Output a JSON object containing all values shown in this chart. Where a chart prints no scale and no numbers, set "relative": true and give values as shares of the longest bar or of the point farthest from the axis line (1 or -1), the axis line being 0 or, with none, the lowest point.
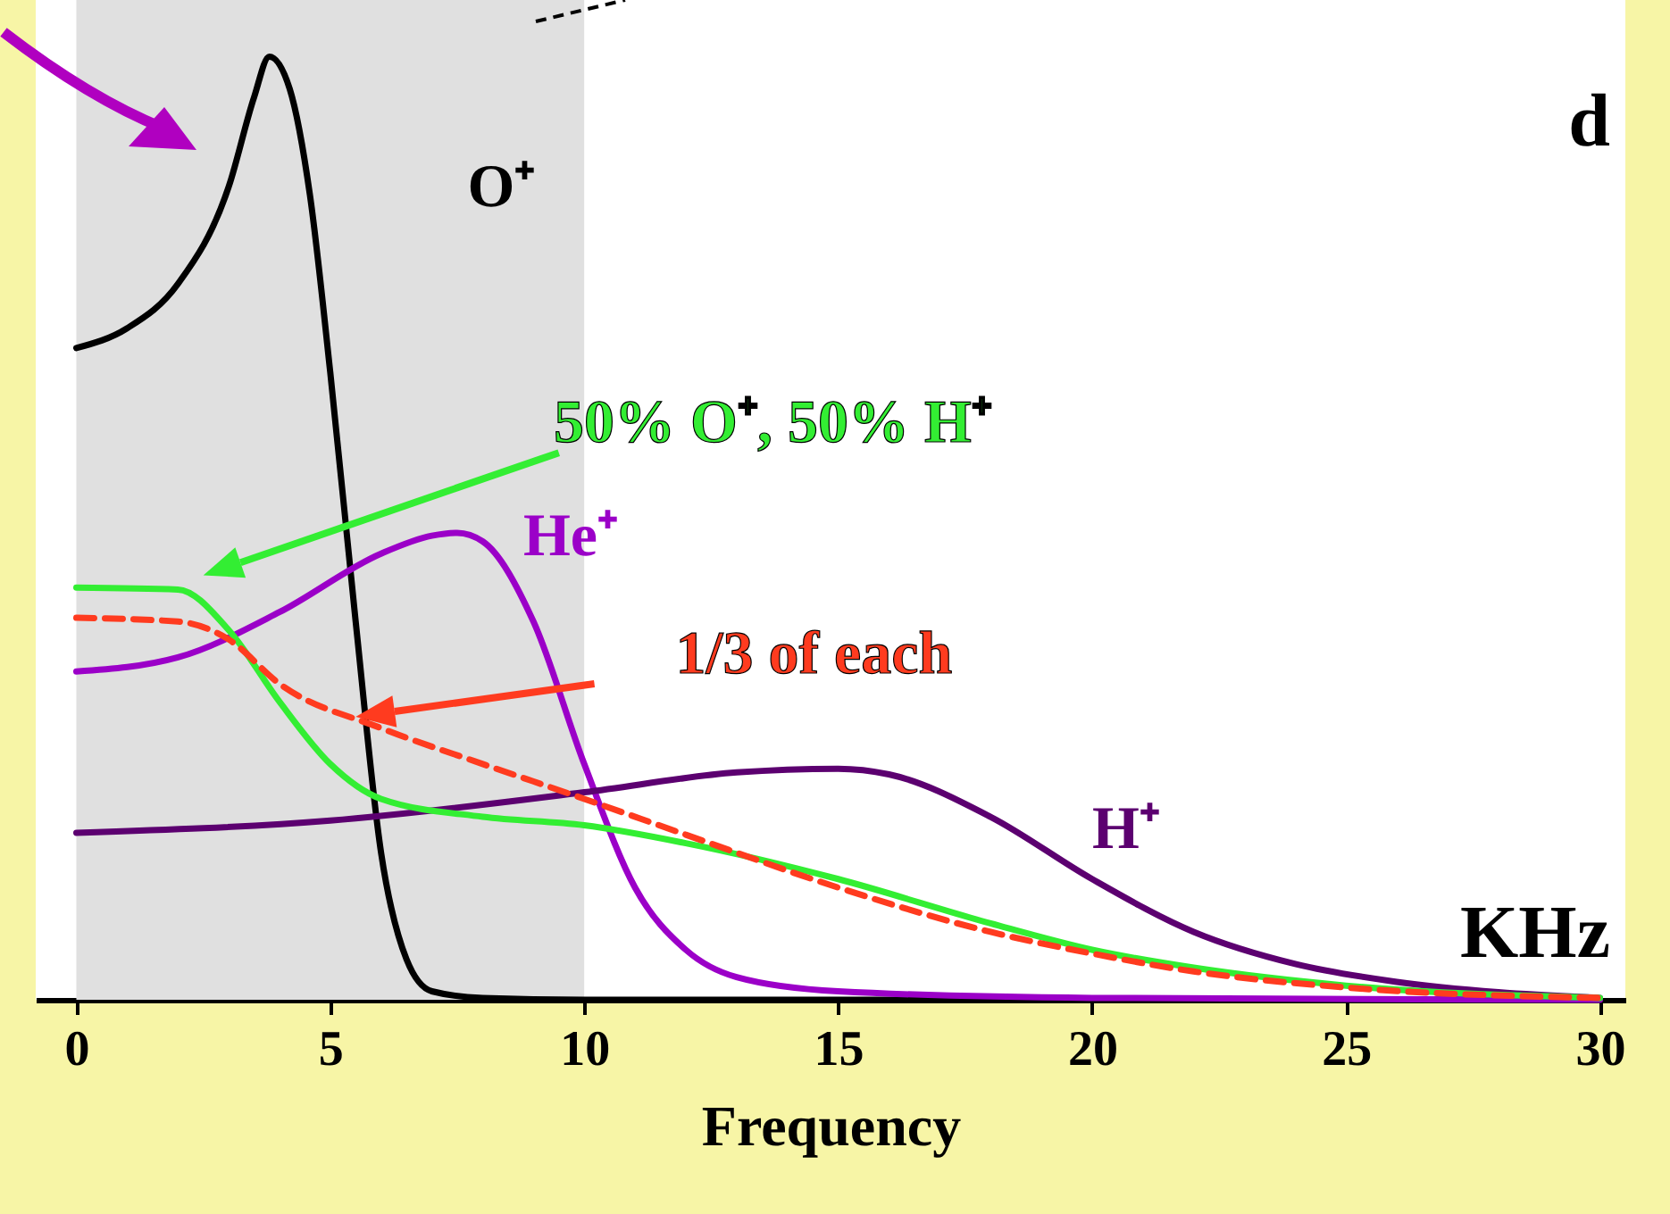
{
  "chart_data": {
    "type": "line",
    "relative": true,
    "xlabel": "Frequency",
    "xlim": [
      -0.8,
      30.5
    ],
    "xticks": [
      0,
      5,
      10,
      15,
      20,
      25,
      30
    ],
    "grid": false,
    "legend": false,
    "bands": [
      {
        "axis": "x",
        "from": 0,
        "to": 10,
        "color": "#e0e0e0"
      }
    ],
    "annotations": [
      "d",
      "KHz"
    ],
    "series": [
      {
        "name": "O⁺",
        "color": "#000000",
        "x": [
          0,
          1,
          2,
          3,
          3.5,
          3.8,
          4.2,
          4.6,
          5,
          5.5,
          6,
          6.5,
          7,
          8,
          10,
          30
        ],
        "values": [
          0.691,
          0.712,
          0.759,
          0.862,
          0.957,
          1,
          0.966,
          0.853,
          0.665,
          0.401,
          0.156,
          0.043,
          0.009,
          0.002,
          0,
          0
        ]
      },
      {
        "name": "He⁺",
        "color": "#9b00c8",
        "x": [
          0,
          2,
          4,
          6,
          7,
          7.5,
          8,
          9,
          10,
          11,
          12,
          13,
          15,
          20,
          30
        ],
        "values": [
          0.348,
          0.363,
          0.411,
          0.473,
          0.492,
          0.495,
          0.486,
          0.401,
          0.25,
          0.119,
          0.053,
          0.024,
          0.009,
          0.002,
          0
        ]
      },
      {
        "name": "H⁺",
        "color": "#5c0070",
        "x": [
          0,
          5,
          10,
          13,
          15,
          16,
          18,
          20,
          22,
          24,
          26,
          28,
          30
        ],
        "values": [
          0.177,
          0.19,
          0.22,
          0.241,
          0.245,
          0.239,
          0.194,
          0.128,
          0.072,
          0.038,
          0.019,
          0.008,
          0.002
        ]
      },
      {
        "name": "50% O⁺, 50% H⁺",
        "color": "#33ee33",
        "x": [
          0,
          2,
          3,
          4,
          5,
          6,
          8,
          10,
          12,
          15,
          18,
          20,
          22,
          25,
          30
        ],
        "values": [
          0.437,
          0.435,
          0.392,
          0.316,
          0.25,
          0.213,
          0.194,
          0.185,
          0.166,
          0.128,
          0.081,
          0.053,
          0.034,
          0.015,
          0.002
        ]
      },
      {
        "name": "1/3 of each",
        "color": "#ff3b1f",
        "line_style": "dashed",
        "x": [
          0,
          2,
          3,
          4,
          6,
          8,
          10,
          12,
          15,
          18,
          20,
          22,
          25,
          30
        ],
        "values": [
          0.405,
          0.401,
          0.382,
          0.335,
          0.288,
          0.25,
          0.213,
          0.175,
          0.119,
          0.072,
          0.049,
          0.03,
          0.013,
          0.002
        ]
      }
    ]
  }
}
